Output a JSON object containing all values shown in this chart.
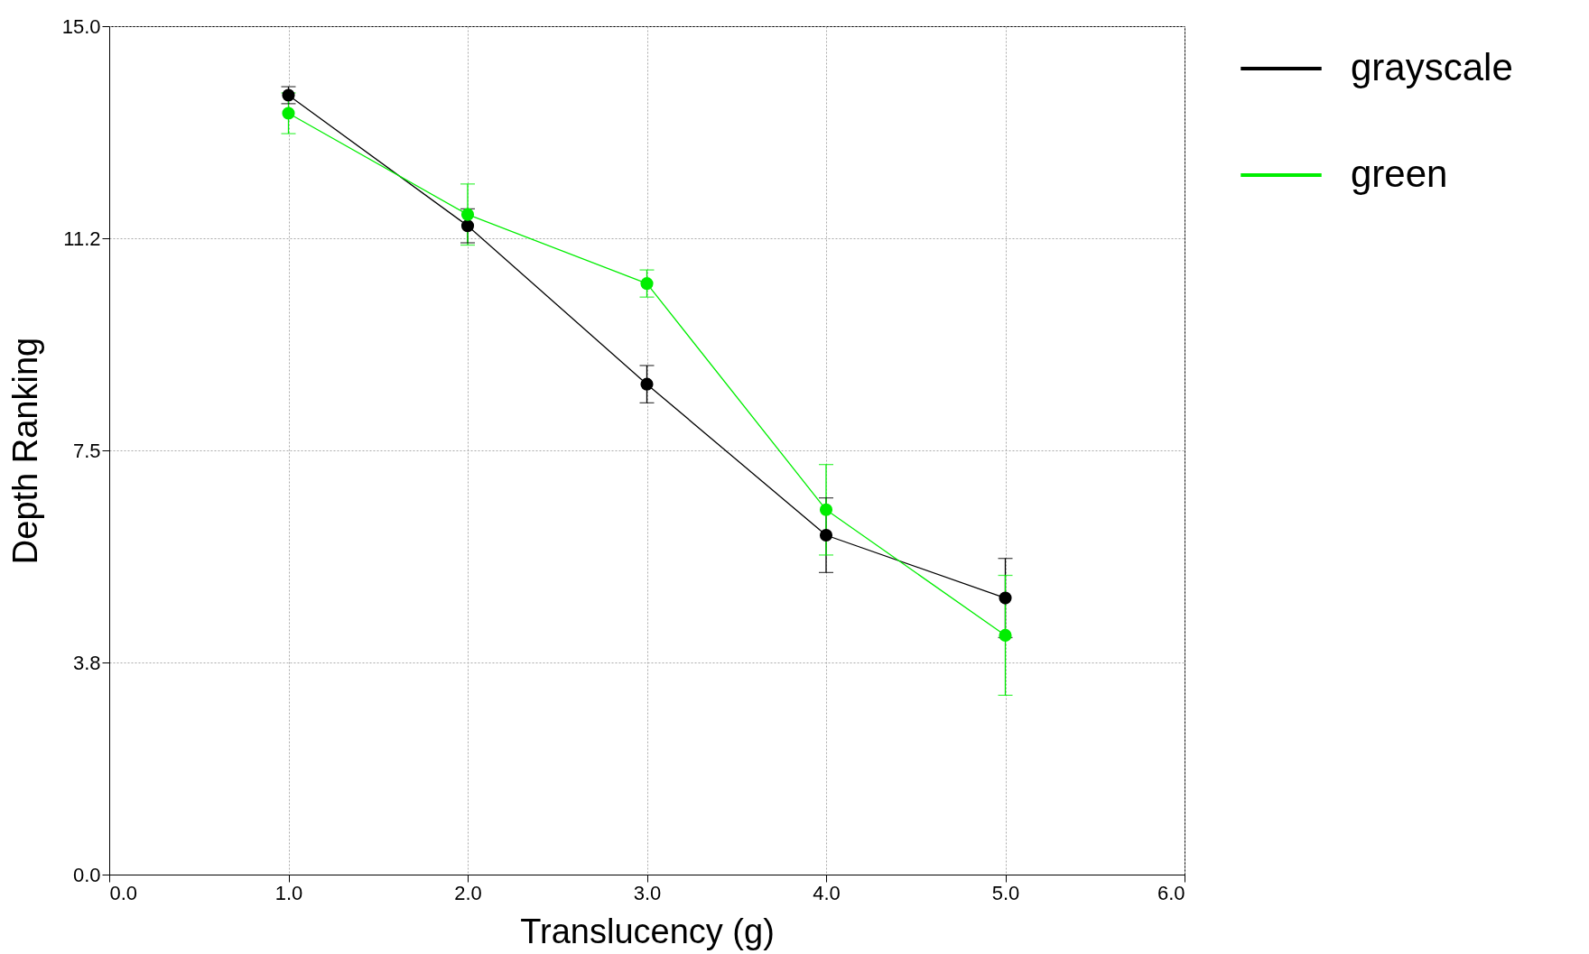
{
  "chart_data": {
    "type": "line",
    "xlabel": "Translucency (g)",
    "ylabel": "Depth Ranking",
    "x": [
      1,
      2,
      3,
      4,
      5
    ],
    "series": [
      {
        "name": "grayscale",
        "color": "#000000",
        "values": [
          13.78,
          11.47,
          8.67,
          6.0,
          4.89
        ],
        "errors": [
          0.15,
          0.3,
          0.33,
          0.66,
          0.7
        ]
      },
      {
        "name": "green",
        "color": "#00ee00",
        "values": [
          13.46,
          11.67,
          10.45,
          6.45,
          4.23
        ],
        "errors": [
          0.36,
          0.54,
          0.24,
          0.8,
          1.06
        ]
      }
    ],
    "xlim": [
      0,
      6
    ],
    "xticks": [
      {
        "value": 0,
        "label": "0.0"
      },
      {
        "value": 1,
        "label": "1.0"
      },
      {
        "value": 2,
        "label": "2.0"
      },
      {
        "value": 3,
        "label": "3.0"
      },
      {
        "value": 4,
        "label": "4.0"
      },
      {
        "value": 5,
        "label": "5.0"
      },
      {
        "value": 6,
        "label": "6.0"
      }
    ],
    "ylim": [
      0,
      15
    ],
    "yticks": [
      {
        "value": 0,
        "label": "0.0"
      },
      {
        "value": 3.75,
        "label": "3.8"
      },
      {
        "value": 7.5,
        "label": "7.5"
      },
      {
        "value": 11.25,
        "label": "11.2"
      },
      {
        "value": 15,
        "label": "15.0"
      }
    ],
    "grid": true,
    "legend": "top right",
    "marker": "circle",
    "line_style": "solid"
  }
}
